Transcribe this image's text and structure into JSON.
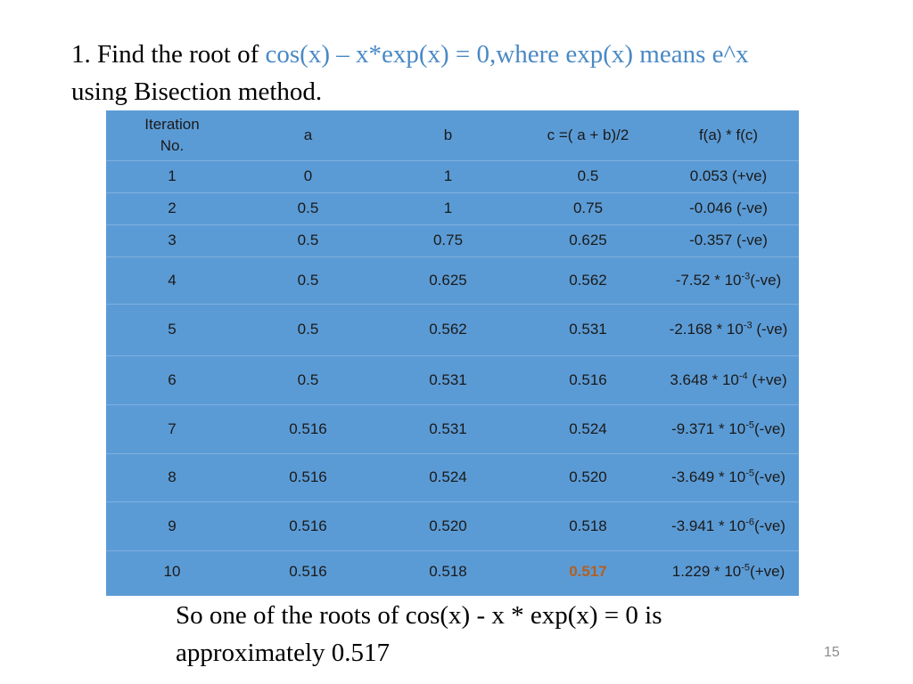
{
  "title": {
    "prefix": "1. Find the root of ",
    "equation": "cos(x) – x*exp(x) = 0,where exp(x) means e^x",
    "suffix": "using Bisection method."
  },
  "table": {
    "headers": [
      "Iteration No.",
      "a",
      "b",
      "c =( a + b)/2",
      "f(a) * f(c)"
    ],
    "rows": [
      {
        "iter": "1",
        "a": "0",
        "b": "1",
        "c": "0.5",
        "fac": {
          "base": "0.053 (+ve)",
          "exp": "",
          "tail": ""
        }
      },
      {
        "iter": "2",
        "a": "0.5",
        "b": "1",
        "c": "0.75",
        "fac": {
          "base": "-0.046 (-ve)",
          "exp": "",
          "tail": ""
        }
      },
      {
        "iter": "3",
        "a": "0.5",
        "b": "0.75",
        "c": "0.625",
        "fac": {
          "base": "-0.357 (-ve)",
          "exp": "",
          "tail": ""
        }
      },
      {
        "iter": "4",
        "a": "0.5",
        "b": "0.625",
        "c": "0.562",
        "fac": {
          "base": "-7.52 * 10",
          "exp": "-3",
          "tail": "(-ve)"
        }
      },
      {
        "iter": "5",
        "a": "0.5",
        "b": "0.562",
        "c": "0.531",
        "fac": {
          "base": "-2.168 * 10",
          "exp": "-3",
          "tail": " (-ve)"
        }
      },
      {
        "iter": "6",
        "a": "0.5",
        "b": "0.531",
        "c": "0.516",
        "fac": {
          "base": "3.648 * 10",
          "exp": "-4",
          "tail": " (+ve)"
        }
      },
      {
        "iter": "7",
        "a": "0.516",
        "b": "0.531",
        "c": "0.524",
        "fac": {
          "base": "-9.371 * 10",
          "exp": "-5",
          "tail": "(-ve)"
        }
      },
      {
        "iter": "8",
        "a": "0.516",
        "b": "0.524",
        "c": "0.520",
        "fac": {
          "base": "-3.649 * 10",
          "exp": "-5",
          "tail": "(-ve)"
        }
      },
      {
        "iter": "9",
        "a": "0.516",
        "b": "0.520",
        "c": "0.518",
        "fac": {
          "base": "-3.941 * 10",
          "exp": "-6",
          "tail": "(-ve)"
        }
      },
      {
        "iter": "10",
        "a": "0.516",
        "b": "0.518",
        "c": "0.517",
        "fac": {
          "base": "1.229 * 10",
          "exp": "-5",
          "tail": "(+ve)"
        }
      }
    ]
  },
  "conclusion": {
    "line1": "So one of the roots of cos(x) - x * exp(x) = 0 is",
    "line2": "approximately 0.517"
  },
  "slide_number": "15",
  "colors": {
    "table_bg": "#5b9bd5",
    "accent_text": "#4a89c5",
    "highlight": "#b45f1e"
  }
}
